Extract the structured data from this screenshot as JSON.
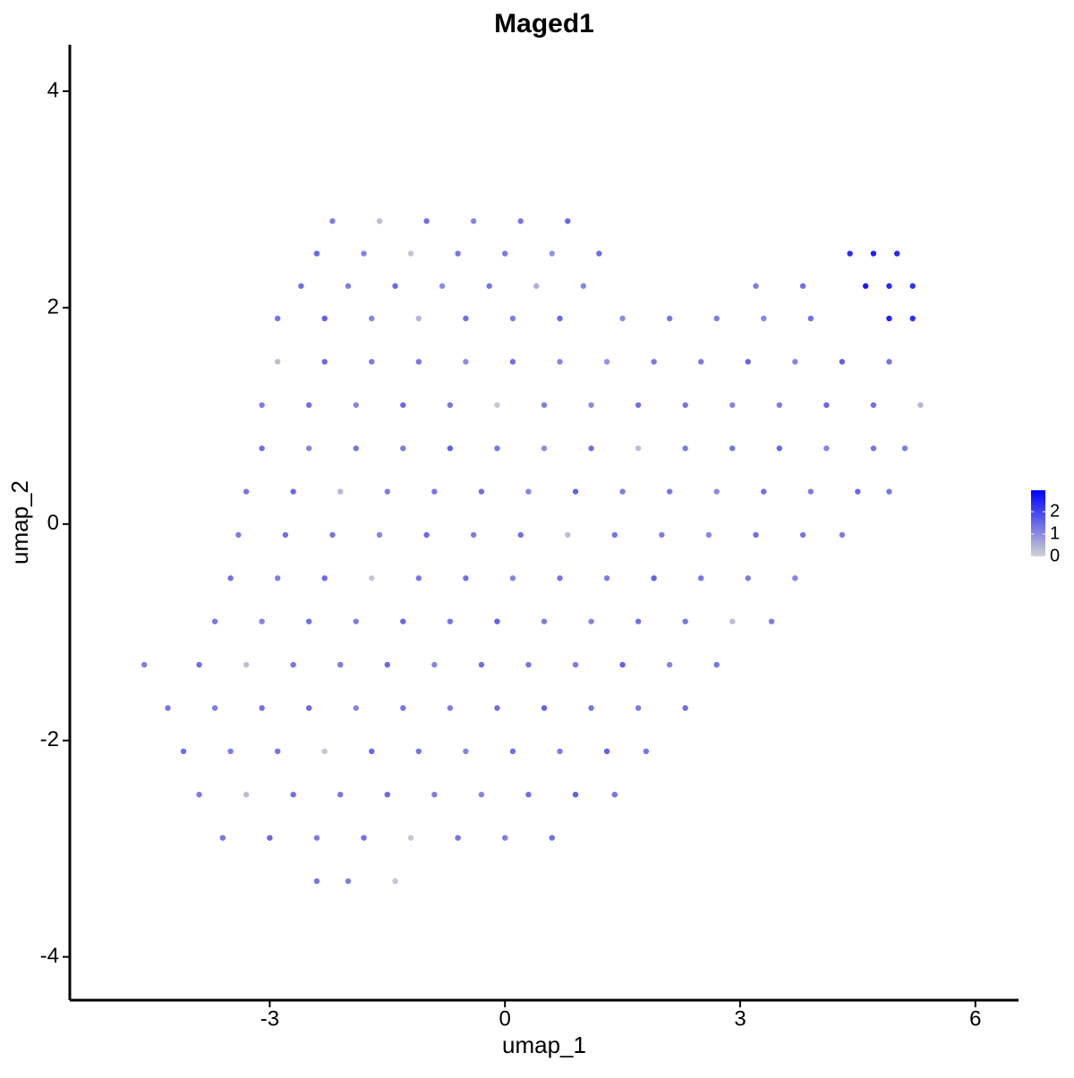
{
  "chart_data": {
    "type": "scatter",
    "title": "Maged1",
    "x_label": "umap_1",
    "y_label": "umap_2",
    "xlim": [
      -5.55,
      6.55
    ],
    "ylim": [
      -4.4,
      4.43
    ],
    "xticks": [
      -3,
      0,
      3,
      6
    ],
    "yticks": [
      -4,
      -2,
      0,
      2,
      4
    ],
    "colorbar": {
      "colors": [
        "#d3d3d3",
        "#0000ff"
      ],
      "lim": [
        0,
        2.96
      ],
      "ticks": [
        0,
        1,
        2
      ]
    },
    "x": [
      -2.2,
      -1.6,
      -1,
      -0.4,
      0.2,
      0.8,
      -2.4,
      -1.8,
      -1.2,
      -0.6,
      0,
      0.6,
      1.2,
      4.4,
      4.7,
      5.0,
      -2.6,
      -2,
      -1.4,
      -0.8,
      -0.2,
      0.4,
      1.0,
      3.2,
      3.8,
      4.6,
      4.9,
      5.2,
      -2.9,
      -2.3,
      -1.7,
      -1.1,
      -0.5,
      0.1,
      0.7,
      1.5,
      2.1,
      2.7,
      3.3,
      3.9,
      4.9,
      5.2,
      -2.9,
      -2.3,
      -1.7,
      -1.1,
      -0.5,
      0.1,
      0.7,
      1.3,
      1.9,
      2.5,
      3.1,
      3.7,
      4.3,
      4.9,
      -3.1,
      -2.5,
      -1.9,
      -1.3,
      -0.7,
      -0.1,
      0.5,
      1.1,
      1.7,
      2.3,
      2.9,
      3.5,
      4.1,
      4.7,
      5.3,
      -3.1,
      -2.5,
      -1.9,
      -1.3,
      -0.7,
      -0.1,
      0.5,
      1.1,
      1.7,
      2.3,
      2.9,
      3.5,
      4.1,
      4.7,
      5.1,
      -3.3,
      -2.7,
      -2.1,
      -1.5,
      -0.9,
      -0.3,
      0.3,
      0.9,
      1.5,
      2.1,
      2.7,
      3.3,
      3.9,
      4.5,
      4.9,
      -3.4,
      -2.8,
      -2.2,
      -1.6,
      -1,
      -0.4,
      0.2,
      0.8,
      1.4,
      2,
      2.6,
      3.2,
      3.8,
      4.3,
      -3.5,
      -2.9,
      -2.3,
      -1.7,
      -1.1,
      -0.5,
      0.1,
      0.7,
      1.3,
      1.9,
      2.5,
      3.1,
      3.7,
      -3.7,
      -3.1,
      -2.5,
      -1.9,
      -1.3,
      -0.7,
      -0.1,
      0.5,
      1.1,
      1.7,
      2.3,
      2.9,
      3.4,
      -4.6,
      -3.9,
      -3.3,
      -2.7,
      -2.1,
      -1.5,
      -0.9,
      -0.3,
      0.3,
      0.9,
      1.5,
      2.1,
      2.7,
      -4.3,
      -3.7,
      -3.1,
      -2.5,
      -1.9,
      -1.3,
      -0.7,
      -0.1,
      0.5,
      1.1,
      1.7,
      2.3,
      -4.1,
      -3.5,
      -2.9,
      -2.3,
      -1.7,
      -1.1,
      -0.5,
      0.1,
      0.7,
      1.3,
      1.8,
      -3.9,
      -3.3,
      -2.7,
      -2.1,
      -1.5,
      -0.9,
      -0.3,
      0.3,
      0.9,
      1.4,
      -3.6,
      -3,
      -2.4,
      -1.8,
      -1.2,
      -0.6,
      0,
      0.6,
      -2.4,
      -2,
      -1.4
    ],
    "y": [
      2.8,
      2.8,
      2.8,
      2.8,
      2.8,
      2.8,
      2.5,
      2.5,
      2.5,
      2.5,
      2.5,
      2.5,
      2.5,
      2.5,
      2.5,
      2.5,
      2.2,
      2.2,
      2.2,
      2.2,
      2.2,
      2.2,
      2.2,
      2.2,
      2.2,
      2.2,
      2.2,
      2.2,
      1.9,
      1.9,
      1.9,
      1.9,
      1.9,
      1.9,
      1.9,
      1.9,
      1.9,
      1.9,
      1.9,
      1.9,
      1.9,
      1.9,
      1.5,
      1.5,
      1.5,
      1.5,
      1.5,
      1.5,
      1.5,
      1.5,
      1.5,
      1.5,
      1.5,
      1.5,
      1.5,
      1.5,
      1.1,
      1.1,
      1.1,
      1.1,
      1.1,
      1.1,
      1.1,
      1.1,
      1.1,
      1.1,
      1.1,
      1.1,
      1.1,
      1.1,
      1.1,
      0.7,
      0.7,
      0.7,
      0.7,
      0.7,
      0.7,
      0.7,
      0.7,
      0.7,
      0.7,
      0.7,
      0.7,
      0.7,
      0.7,
      0.7,
      0.3,
      0.3,
      0.3,
      0.3,
      0.3,
      0.3,
      0.3,
      0.3,
      0.3,
      0.3,
      0.3,
      0.3,
      0.3,
      0.3,
      0.3,
      -0.1,
      -0.1,
      -0.1,
      -0.1,
      -0.1,
      -0.1,
      -0.1,
      -0.1,
      -0.1,
      -0.1,
      -0.1,
      -0.1,
      -0.1,
      -0.1,
      -0.5,
      -0.5,
      -0.5,
      -0.5,
      -0.5,
      -0.5,
      -0.5,
      -0.5,
      -0.5,
      -0.5,
      -0.5,
      -0.5,
      -0.5,
      -0.9,
      -0.9,
      -0.9,
      -0.9,
      -0.9,
      -0.9,
      -0.9,
      -0.9,
      -0.9,
      -0.9,
      -0.9,
      -0.9,
      -0.9,
      -1.3,
      -1.3,
      -1.3,
      -1.3,
      -1.3,
      -1.3,
      -1.3,
      -1.3,
      -1.3,
      -1.3,
      -1.3,
      -1.3,
      -1.3,
      -1.7,
      -1.7,
      -1.7,
      -1.7,
      -1.7,
      -1.7,
      -1.7,
      -1.7,
      -1.7,
      -1.7,
      -1.7,
      -1.7,
      -2.1,
      -2.1,
      -2.1,
      -2.1,
      -2.1,
      -2.1,
      -2.1,
      -2.1,
      -2.1,
      -2.1,
      -2.1,
      -2.5,
      -2.5,
      -2.5,
      -2.5,
      -2.5,
      -2.5,
      -2.5,
      -2.5,
      -2.5,
      -2.5,
      -2.9,
      -2.9,
      -2.9,
      -2.9,
      -2.9,
      -2.9,
      -2.9,
      -2.9,
      -3.3,
      -3.3,
      -3.3
    ],
    "values": [
      1.2,
      0.3,
      1.4,
      1.1,
      1.3,
      1.5,
      1.5,
      1.1,
      0.2,
      1.3,
      1.2,
      0.9,
      1.4,
      2.3,
      2.5,
      2.4,
      1.4,
      1.2,
      1.5,
      1.0,
      1.3,
      0.5,
      1.1,
      1.2,
      1.4,
      2.6,
      2.4,
      2.3,
      1.3,
      1.6,
      1.1,
      0.4,
      1.4,
      1.2,
      1.5,
      1.0,
      1.3,
      1.2,
      1.1,
      1.4,
      2.5,
      2.3,
      0.3,
      1.5,
      1.2,
      1.3,
      1.0,
      1.4,
      1.1,
      0.9,
      1.3,
      1.2,
      1.5,
      1.1,
      1.6,
      1.3,
      1.2,
      1.4,
      1.1,
      1.5,
      1.3,
      0.2,
      1.2,
      1.0,
      1.4,
      1.3,
      1.1,
      1.2,
      1.5,
      1.4,
      0.4,
      1.4,
      1.1,
      1.3,
      1.2,
      1.6,
      1.3,
      1.0,
      1.4,
      0.3,
      1.2,
      1.3,
      1.5,
      1.1,
      1.3,
      1.2,
      1.3,
      1.5,
      0.4,
      1.2,
      1.3,
      1.4,
      1.1,
      1.6,
      1.2,
      1.3,
      1.0,
      1.4,
      1.2,
      1.5,
      1.3,
      1.2,
      1.4,
      1.3,
      1.1,
      1.5,
      1.2,
      1.4,
      0.3,
      1.3,
      1.2,
      1.1,
      1.4,
      1.3,
      1.2,
      1.4,
      1.2,
      1.5,
      0.2,
      1.3,
      1.4,
      1.1,
      1.3,
      1.2,
      1.6,
      1.3,
      1.2,
      1.1,
      1.3,
      1.1,
      1.4,
      1.2,
      1.5,
      1.3,
      1.6,
      1.2,
      1.1,
      1.4,
      1.3,
      0.3,
      1.2,
      1.2,
      1.4,
      0.3,
      1.3,
      1.2,
      1.5,
      1.1,
      1.4,
      1.3,
      1.2,
      1.6,
      1.1,
      1.3,
      1.3,
      1.2,
      1.4,
      1.5,
      1.1,
      1.3,
      1.2,
      1.4,
      1.6,
      1.3,
      1.2,
      1.4,
      1.4,
      1.2,
      1.3,
      0.2,
      1.5,
      1.3,
      1.1,
      1.4,
      1.2,
      1.6,
      1.3,
      1.2,
      0.3,
      1.4,
      1.3,
      1.5,
      1.2,
      1.1,
      1.4,
      1.6,
      1.3,
      1.3,
      1.5,
      1.2,
      1.4,
      0.2,
      1.3,
      1.2,
      1.4,
      1.3,
      1.2,
      0.2
    ]
  }
}
